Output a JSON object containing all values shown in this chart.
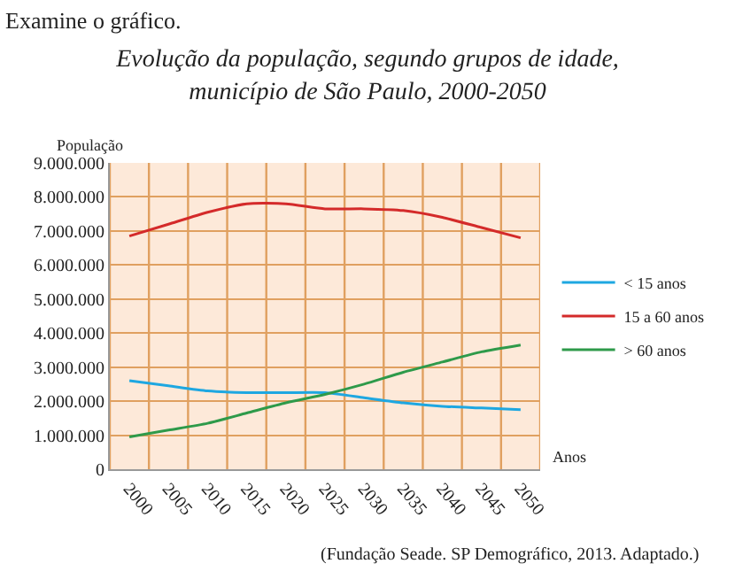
{
  "chart_data": {
    "type": "line",
    "title": "Evolução da população, segundo grupos de idade,\nmunicípio de São Paulo, 2000-2050",
    "xlabel": "Anos",
    "ylabel": "População",
    "categories": [
      "2000",
      "2005",
      "2010",
      "2015",
      "2020",
      "2025",
      "2030",
      "2035",
      "2040",
      "2045",
      "2050"
    ],
    "series": [
      {
        "name": "< 15 anos",
        "color": "#1ea7e1",
        "values": [
          2600000,
          2450000,
          2300000,
          2250000,
          2250000,
          2250000,
          2100000,
          1950000,
          1850000,
          1800000,
          1750000
        ]
      },
      {
        "name": "15 a 60 anos",
        "color": "#d42a2a",
        "values": [
          6850000,
          7200000,
          7550000,
          7800000,
          7800000,
          7650000,
          7650000,
          7600000,
          7400000,
          7100000,
          6800000
        ]
      },
      {
        "name": "> 60 anos",
        "color": "#2e9a4a",
        "values": [
          950000,
          1150000,
          1350000,
          1650000,
          1950000,
          2200000,
          2500000,
          2850000,
          3150000,
          3450000,
          3650000
        ]
      }
    ],
    "ylim": [
      0,
      9000000
    ],
    "yticks": [
      0,
      {
        "value": 1000000,
        "label": "1.000.000"
      },
      {
        "value": 2000000,
        "label": "2.000.000"
      },
      {
        "value": 3000000,
        "label": "3.000.000"
      },
      {
        "value": 4000000,
        "label": "4.000.000"
      },
      {
        "value": 5000000,
        "label": "5.000.000"
      },
      {
        "value": 6000000,
        "label": "6.000.000"
      },
      {
        "value": 7000000,
        "label": "7.000.000"
      },
      {
        "value": 8000000,
        "label": "8.000.000"
      },
      {
        "value": 9000000,
        "label": "9.000.000"
      }
    ],
    "grid": true,
    "legend": "right",
    "marker": "none",
    "line_style": "solid",
    "annotations": [
      "Examine o gráfico.",
      "(Fundação Seade. SP Demográfico, 2013. Adaptado.)"
    ]
  }
}
